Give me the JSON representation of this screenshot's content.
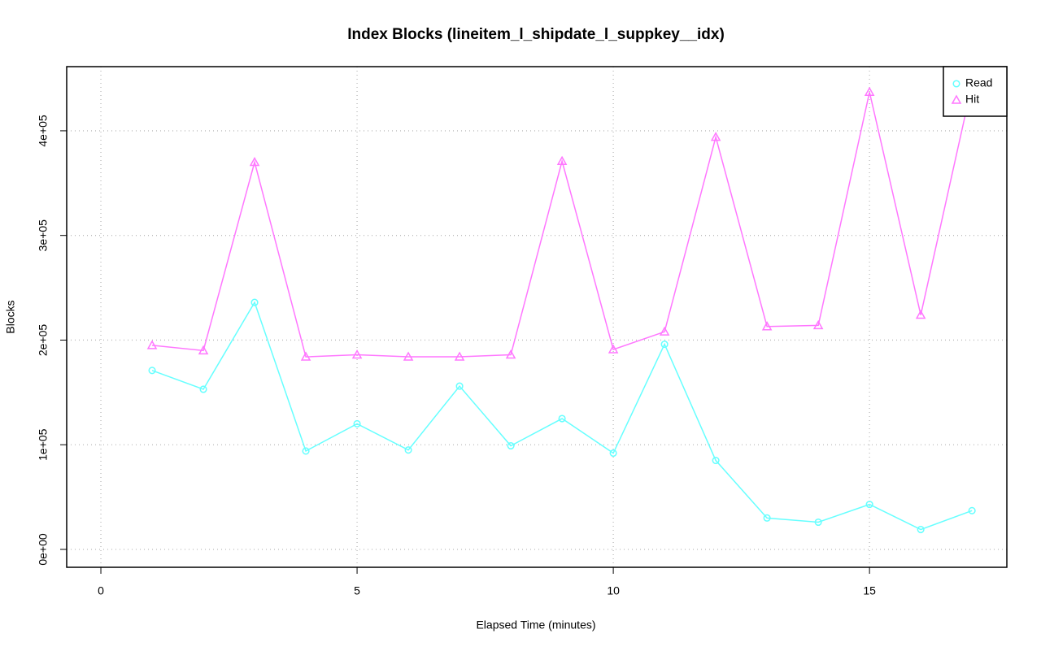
{
  "chart_data": {
    "type": "line",
    "title": "Index Blocks (lineitem_l_shipdate_l_suppkey__idx)",
    "x_label": "Elapsed Time (minutes)",
    "y_label": "Blocks",
    "x": [
      1,
      2,
      3,
      4,
      5,
      6,
      7,
      8,
      9,
      10,
      11,
      12,
      13,
      14,
      15,
      16,
      17
    ],
    "series": [
      {
        "name": "Read",
        "color": "#66ffff",
        "marker": "circle",
        "values": [
          171000,
          153000,
          236000,
          94000,
          120000,
          95000,
          156000,
          99000,
          125000,
          92000,
          196000,
          85000,
          30000,
          26000,
          43000,
          19000,
          37000
        ]
      },
      {
        "name": "Hit",
        "color": "#ff77ff",
        "marker": "triangle",
        "values": [
          195000,
          190000,
          370000,
          184000,
          186000,
          184000,
          184000,
          186000,
          371000,
          191000,
          208000,
          394000,
          213000,
          214000,
          437000,
          224000,
          444000
        ]
      }
    ],
    "xlim": [
      -0.667,
      17.68
    ],
    "ylim": [
      -17100,
      461300
    ],
    "xticks": [
      0,
      5,
      10,
      15
    ],
    "yticks": [
      {
        "value": 0,
        "label": "0e+00"
      },
      {
        "value": 100000,
        "label": "1e+05"
      },
      {
        "value": 200000,
        "label": "2e+05"
      },
      {
        "value": 300000,
        "label": "3e+05"
      },
      {
        "value": 400000,
        "label": "4e+05"
      }
    ],
    "grid": true,
    "legend": "top-right"
  }
}
